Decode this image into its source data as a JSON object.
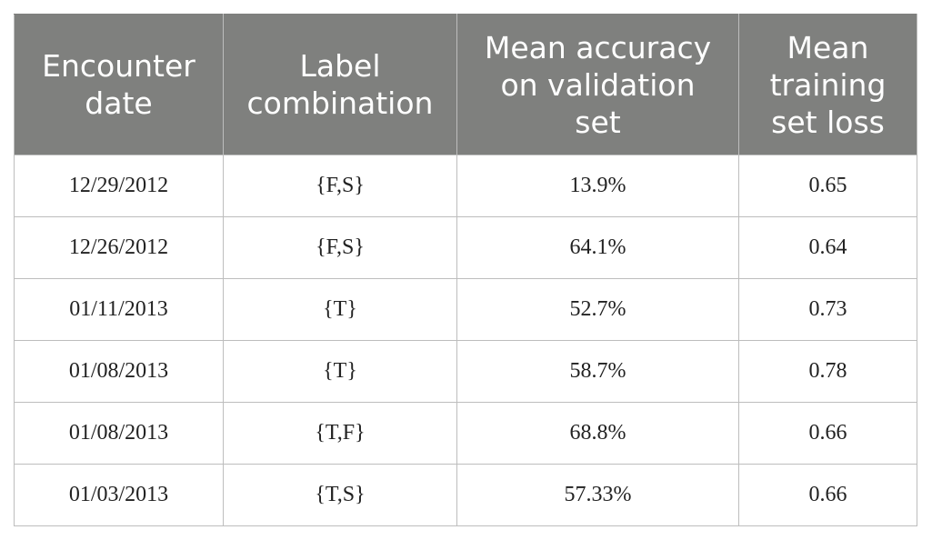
{
  "table": {
    "headers": [
      {
        "lines": [
          "Encounter",
          "date"
        ]
      },
      {
        "lines": [
          "Label",
          "combination"
        ]
      },
      {
        "lines": [
          "Mean accuracy",
          "on validation",
          "set"
        ]
      },
      {
        "lines": [
          "Mean",
          "training",
          "set loss"
        ]
      }
    ],
    "rows": [
      [
        "12/29/2012",
        "{F,S}",
        "13.9%",
        "0.65"
      ],
      [
        "12/26/2012",
        "{F,S}",
        "64.1%",
        "0.64"
      ],
      [
        "01/11/2013",
        "{T}",
        "52.7%",
        "0.73"
      ],
      [
        "01/08/2013",
        "{T}",
        "58.7%",
        "0.78"
      ],
      [
        "01/08/2013",
        "{T,F}",
        "68.8%",
        "0.66"
      ],
      [
        "01/03/2013",
        "{T,S}",
        "57.33%",
        "0.66"
      ]
    ]
  }
}
